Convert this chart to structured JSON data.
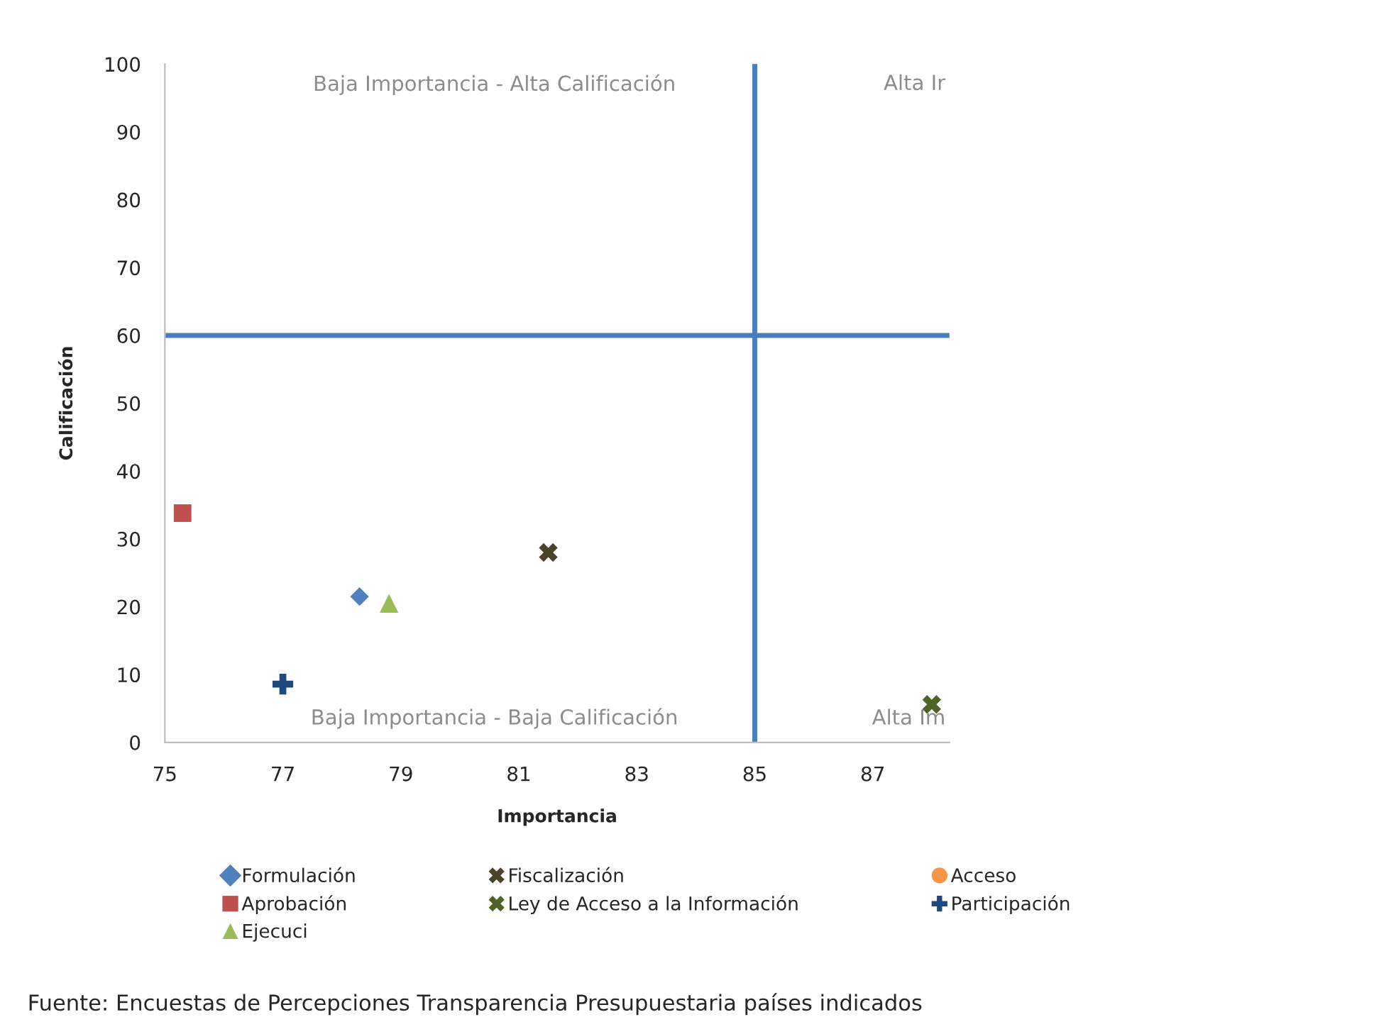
{
  "chart_data": {
    "type": "scatter",
    "xlabel": "Importancia",
    "ylabel": "Calificación",
    "xlim": [
      75,
      88.3
    ],
    "xticks": [
      75,
      77,
      79,
      81,
      83,
      85,
      87
    ],
    "ylim": [
      0,
      100
    ],
    "yticks": [
      0,
      10,
      20,
      30,
      40,
      50,
      60,
      70,
      80,
      90,
      100
    ],
    "grid": false,
    "legend": "bottom",
    "ref_lines": [
      {
        "axis": "x",
        "value": 85,
        "color": "#4a7ebb"
      },
      {
        "axis": "y",
        "value": 60,
        "color": "#4a7ebb"
      }
    ],
    "annotations": [
      "Baja Importancia - Alta Calificación",
      "Alta Ir",
      "Baja Importancia - Baja Calificación",
      "Alta Im",
      "Fuente: Encuestas de Percepciones Transparencia Presupuestaria países indicados"
    ],
    "series": [
      {
        "name": "Formulación",
        "color": "#4f81bd",
        "marker": "diamond",
        "x": [
          78.3
        ],
        "values": [
          21.5
        ]
      },
      {
        "name": "Aprobación",
        "color": "#c0504d",
        "marker": "square",
        "x": [
          75.3
        ],
        "values": [
          33.8
        ]
      },
      {
        "name": "Ejecuci",
        "color": "#9bbb59",
        "marker": "triangle",
        "x": [
          78.8
        ],
        "values": [
          20.5
        ]
      },
      {
        "name": "Fiscalización",
        "color": "#4a452a",
        "marker": "cross",
        "x": [
          81.5
        ],
        "values": [
          28
        ]
      },
      {
        "name": "Ley de Acceso a la Información",
        "color": "#4f6228",
        "marker": "cross",
        "x": [
          88.0
        ],
        "values": [
          5.6
        ]
      },
      {
        "name": "Acceso",
        "color": "#f79646",
        "marker": "circle",
        "x": [
          null
        ],
        "values": [
          null
        ]
      },
      {
        "name": "Participación",
        "color": "#1f497d",
        "marker": "plus",
        "x": [
          77.0
        ],
        "values": [
          8.6
        ]
      }
    ]
  }
}
